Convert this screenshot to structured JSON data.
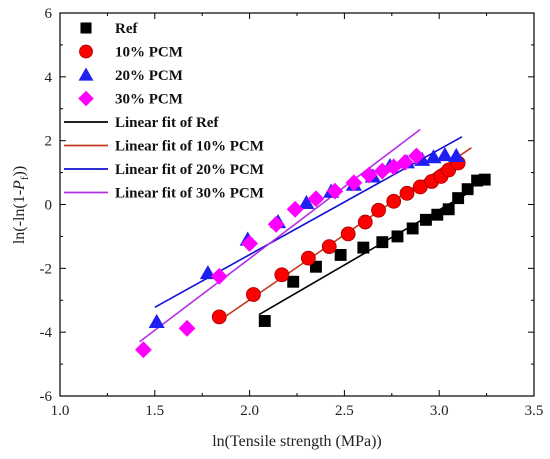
{
  "chart_data": {
    "type": "scatter",
    "xlabel": "ln(Tensile strength (MPa))",
    "ylabel_parts": {
      "before": "ln(-ln(1-",
      "variable": "P",
      "subscript": "f",
      "after": "))"
    },
    "xlim": [
      1.0,
      3.5
    ],
    "ylim": [
      -6,
      6
    ],
    "xticks": [
      "1.0",
      "1.5",
      "2.0",
      "2.5",
      "3.0",
      "3.5"
    ],
    "yticks": [
      "-6",
      "-4",
      "-2",
      "0",
      "2",
      "4",
      "6"
    ],
    "grid": false,
    "legend_position": "top-left",
    "series": [
      {
        "name": "Ref",
        "marker": "square",
        "color": "#000000",
        "x": [
          2.08,
          2.23,
          2.35,
          2.48,
          2.6,
          2.7,
          2.78,
          2.86,
          2.93,
          2.99,
          3.05,
          3.1,
          3.15,
          3.2,
          3.24
        ],
        "y": [
          -3.65,
          -2.42,
          -1.95,
          -1.58,
          -1.35,
          -1.18,
          -1.0,
          -0.75,
          -0.48,
          -0.32,
          -0.15,
          0.2,
          0.48,
          0.75,
          0.78
        ]
      },
      {
        "name": "10% PCM",
        "marker": "circle",
        "color": "#ff0000",
        "x": [
          1.84,
          2.02,
          2.17,
          2.31,
          2.42,
          2.52,
          2.61,
          2.68,
          2.76,
          2.83,
          2.9,
          2.96,
          3.01,
          3.05,
          3.1
        ],
        "y": [
          -3.52,
          -2.82,
          -2.2,
          -1.68,
          -1.32,
          -0.92,
          -0.55,
          -0.18,
          0.1,
          0.35,
          0.55,
          0.72,
          0.88,
          1.08,
          1.3
        ]
      },
      {
        "name": "20% PCM",
        "marker": "triangle",
        "color": "#1f1ff0",
        "x": [
          1.51,
          1.78,
          1.99,
          2.15,
          2.3,
          2.43,
          2.55,
          2.65,
          2.74,
          2.83,
          2.91,
          2.97,
          3.03,
          3.09
        ],
        "y": [
          -3.68,
          -2.15,
          -1.1,
          -0.55,
          0.05,
          0.4,
          0.62,
          0.88,
          1.2,
          1.32,
          1.4,
          1.48,
          1.55,
          1.52
        ]
      },
      {
        "name": "30% PCM",
        "marker": "diamond",
        "color": "#ff00ff",
        "x": [
          1.44,
          1.67,
          1.84,
          2.0,
          2.14,
          2.24,
          2.35,
          2.45,
          2.55,
          2.63,
          2.7,
          2.76,
          2.82,
          2.88
        ],
        "y": [
          -4.55,
          -3.88,
          -2.25,
          -1.22,
          -0.62,
          -0.15,
          0.18,
          0.42,
          0.68,
          0.92,
          1.05,
          1.18,
          1.32,
          1.52
        ]
      }
    ],
    "fits": [
      {
        "name": "Linear fit of Ref",
        "color": "#000000",
        "x": [
          2.05,
          3.15
        ],
        "y": [
          -3.45,
          0.35
        ]
      },
      {
        "name": "Linear fit of 10% PCM",
        "color": "#c43a1a",
        "x": [
          1.82,
          3.17
        ],
        "y": [
          -3.72,
          1.78
        ]
      },
      {
        "name": "Linear fit of 20% PCM",
        "color": "#1010d0",
        "x": [
          1.5,
          3.12
        ],
        "y": [
          -3.22,
          2.12
        ]
      },
      {
        "name": "Linear fit of 30% PCM",
        "color": "#b42ee8",
        "x": [
          1.42,
          2.9
        ],
        "y": [
          -4.3,
          2.35
        ]
      }
    ]
  }
}
